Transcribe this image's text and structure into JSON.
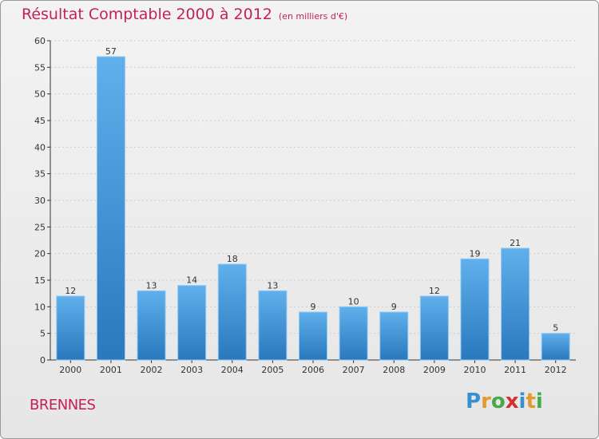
{
  "header": {
    "title": "Résultat Comptable 2000 à 2012",
    "unit": "(en milliers d'€)"
  },
  "footer": {
    "place": "BRENNES",
    "logo_letters": [
      {
        "ch": "P",
        "color": "#3a8fd0"
      },
      {
        "ch": "r",
        "color": "#e39a2d"
      },
      {
        "ch": "o",
        "color": "#4aa84a"
      },
      {
        "ch": "x",
        "color": "#d62f2f"
      },
      {
        "ch": "i",
        "color": "#3a8fd0"
      },
      {
        "ch": "t",
        "color": "#e39a2d"
      },
      {
        "ch": "i",
        "color": "#4aa84a"
      }
    ]
  },
  "colors": {
    "title": "#c4205a",
    "bar_top": "#5fb0ec",
    "bar_bottom": "#2a78bd",
    "grid": "#cccccc"
  },
  "chart_data": {
    "type": "bar",
    "title": "Résultat Comptable 2000 à 2012",
    "ylabel": "(en milliers d'€)",
    "xlabel": "",
    "categories": [
      "2000",
      "2001",
      "2002",
      "2003",
      "2004",
      "2005",
      "2006",
      "2007",
      "2008",
      "2009",
      "2010",
      "2011",
      "2012"
    ],
    "values": [
      12,
      57,
      13,
      14,
      18,
      13,
      9,
      10,
      9,
      12,
      19,
      21,
      5
    ],
    "ylim": [
      0,
      60
    ],
    "yticks": [
      0,
      5,
      10,
      15,
      20,
      25,
      30,
      35,
      40,
      45,
      50,
      55,
      60
    ],
    "grid": true,
    "legend": "none"
  }
}
